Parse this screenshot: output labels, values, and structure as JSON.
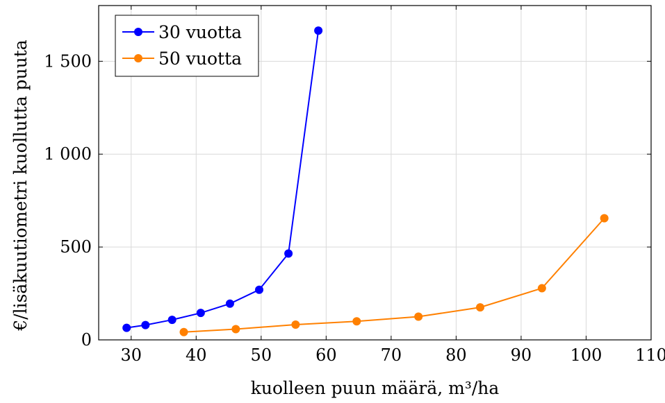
{
  "chart_data": {
    "type": "line",
    "xlabel": "kuolleen puun määrä, m³/ha",
    "ylabel": "€/lisäkuutiometri kuollutta puuta",
    "xlim": [
      25,
      110
    ],
    "ylim": [
      0,
      1800
    ],
    "xticks": [
      30,
      40,
      50,
      60,
      70,
      80,
      90,
      100,
      110
    ],
    "yticks": [
      0,
      500,
      1000,
      1500
    ],
    "ytick_labels": [
      "0",
      "500",
      "1 000",
      "1 500"
    ],
    "grid": true,
    "legend_position": "top-left",
    "series": [
      {
        "name": "30 vuotta",
        "color": "#0000ff",
        "marker": "circle",
        "x": [
          29.3,
          32.2,
          36.3,
          40.7,
          45.2,
          49.7,
          54.2,
          58.8
        ],
        "y": [
          65,
          80,
          108,
          145,
          195,
          270,
          465,
          1665
        ]
      },
      {
        "name": "50 vuotta",
        "color": "#ff8000",
        "marker": "circle",
        "x": [
          38.1,
          46.1,
          55.3,
          64.7,
          74.2,
          83.7,
          93.2,
          102.8
        ],
        "y": [
          42,
          58,
          82,
          100,
          125,
          175,
          278,
          655
        ]
      }
    ]
  }
}
